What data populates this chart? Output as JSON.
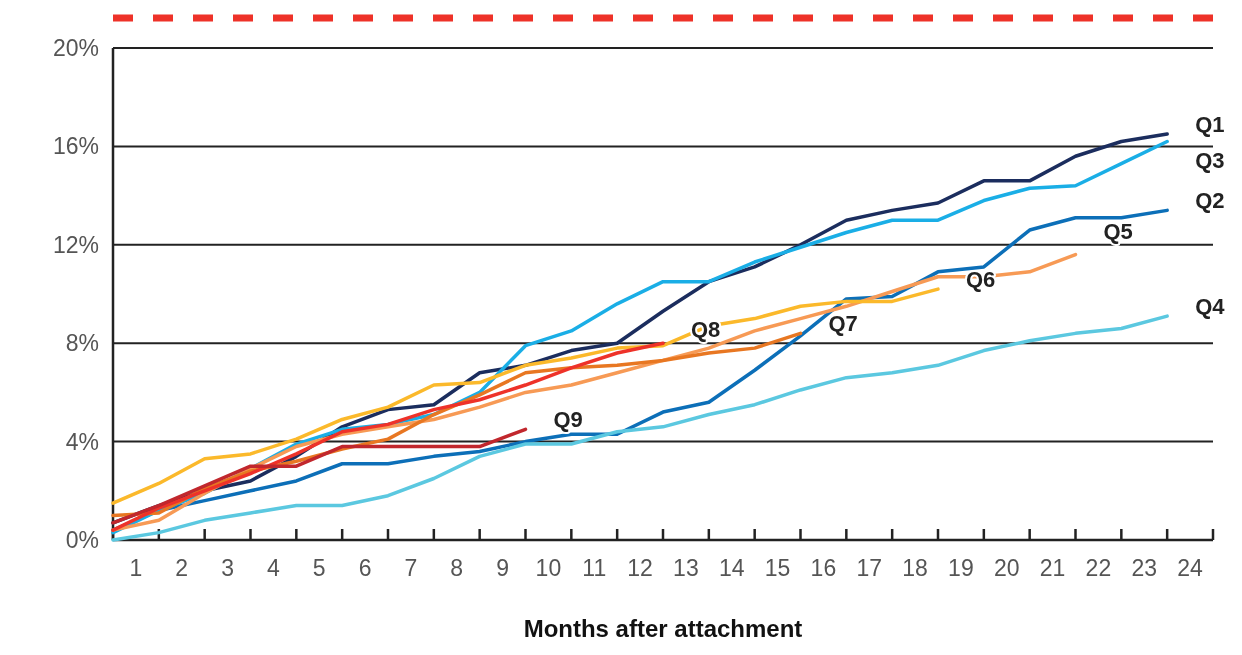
{
  "chart_data": {
    "type": "line",
    "xlabel": "Months after attachment",
    "x": [
      0,
      1,
      2,
      3,
      4,
      5,
      6,
      7,
      8,
      9,
      10,
      11,
      12,
      13,
      14,
      15,
      16,
      17,
      18,
      19,
      20,
      21,
      22,
      23
    ],
    "xlim": [
      0,
      24
    ],
    "xticks": [
      {
        "value": 0,
        "label": null
      },
      {
        "value": 0.5,
        "label": "1"
      },
      {
        "value": 1,
        "label": null
      },
      {
        "value": 1.5,
        "label": "2"
      },
      {
        "value": 2,
        "label": null
      },
      {
        "value": 2.5,
        "label": "3"
      },
      {
        "value": 3,
        "label": null
      },
      {
        "value": 3.5,
        "label": "4"
      },
      {
        "value": 4,
        "label": null
      },
      {
        "value": 4.5,
        "label": "5"
      },
      {
        "value": 5,
        "label": null
      },
      {
        "value": 5.5,
        "label": "6"
      },
      {
        "value": 6,
        "label": null
      },
      {
        "value": 6.5,
        "label": "7"
      },
      {
        "value": 7,
        "label": null
      },
      {
        "value": 7.5,
        "label": "8"
      },
      {
        "value": 8,
        "label": null
      },
      {
        "value": 8.5,
        "label": "9"
      },
      {
        "value": 9,
        "label": null
      },
      {
        "value": 9.5,
        "label": "10"
      },
      {
        "value": 10,
        "label": null
      },
      {
        "value": 10.5,
        "label": "11"
      },
      {
        "value": 11,
        "label": null
      },
      {
        "value": 11.5,
        "label": "12"
      },
      {
        "value": 12,
        "label": null
      },
      {
        "value": 12.5,
        "label": "13"
      },
      {
        "value": 13,
        "label": null
      },
      {
        "value": 13.5,
        "label": "14"
      },
      {
        "value": 14,
        "label": null
      },
      {
        "value": 14.5,
        "label": "15"
      },
      {
        "value": 15,
        "label": null
      },
      {
        "value": 15.5,
        "label": "16"
      },
      {
        "value": 16,
        "label": null
      },
      {
        "value": 16.5,
        "label": "17"
      },
      {
        "value": 17,
        "label": null
      },
      {
        "value": 17.5,
        "label": "18"
      },
      {
        "value": 18,
        "label": null
      },
      {
        "value": 18.5,
        "label": "19"
      },
      {
        "value": 19,
        "label": null
      },
      {
        "value": 19.5,
        "label": "20"
      },
      {
        "value": 20,
        "label": null
      },
      {
        "value": 20.5,
        "label": "21"
      },
      {
        "value": 21,
        "label": null
      },
      {
        "value": 21.5,
        "label": "22"
      },
      {
        "value": 22,
        "label": null
      },
      {
        "value": 22.5,
        "label": "23"
      },
      {
        "value": 23,
        "label": null
      },
      {
        "value": 23.5,
        "label": "24"
      },
      {
        "value": 24,
        "label": null
      }
    ],
    "ylim": [
      0,
      20
    ],
    "yticks": [
      {
        "value": 0,
        "label": "0%"
      },
      {
        "value": 4,
        "label": "4%"
      },
      {
        "value": 8,
        "label": "8%"
      },
      {
        "value": 12,
        "label": "12%"
      },
      {
        "value": 16,
        "label": "16%"
      },
      {
        "value": 20,
        "label": "20%"
      }
    ],
    "grid": "y",
    "marker": "none",
    "line_style": "solid",
    "series": [
      {
        "name": "Q1",
        "color": "#1b2d5e",
        "values": [
          0.7,
          1.4,
          2.0,
          2.4,
          3.4,
          4.6,
          5.3,
          5.5,
          6.8,
          7.1,
          7.7,
          8.0,
          9.3,
          10.5,
          11.1,
          12.0,
          13.0,
          13.4,
          13.7,
          14.6,
          14.6,
          15.6,
          16.2,
          16.5
        ]
      },
      {
        "name": "Q2",
        "color": "#0c6fb8",
        "values": [
          0.4,
          1.2,
          1.6,
          2.0,
          2.4,
          3.1,
          3.1,
          3.4,
          3.6,
          4.0,
          4.3,
          4.3,
          5.2,
          5.6,
          6.9,
          8.3,
          9.8,
          9.9,
          10.9,
          11.1,
          12.6,
          13.1,
          13.1,
          13.4
        ]
      },
      {
        "name": "Q3",
        "color": "#1aaee6",
        "values": [
          0.3,
          1.2,
          1.9,
          2.9,
          3.9,
          4.5,
          4.7,
          5.1,
          6.0,
          7.9,
          8.5,
          9.6,
          10.5,
          10.5,
          11.3,
          11.9,
          12.5,
          13.0,
          13.0,
          13.8,
          14.3,
          14.4,
          15.3,
          16.2
        ]
      },
      {
        "name": "Q4",
        "color": "#5bc8e0",
        "values": [
          0,
          0.3,
          0.8,
          1.1,
          1.4,
          1.4,
          1.8,
          2.5,
          3.4,
          3.9,
          3.9,
          4.4,
          4.6,
          5.1,
          5.5,
          6.1,
          6.6,
          6.8,
          7.1,
          7.7,
          8.1,
          8.4,
          8.6,
          9.1
        ]
      },
      {
        "name": "Q5",
        "color": "#f79a55",
        "values": [
          0.4,
          0.8,
          1.9,
          2.9,
          3.8,
          4.3,
          4.6,
          4.9,
          5.4,
          6.0,
          6.3,
          6.8,
          7.3,
          7.8,
          8.5,
          9.0,
          9.5,
          10.1,
          10.7,
          10.7,
          10.9,
          11.6,
          null,
          null
        ]
      },
      {
        "name": "Q6",
        "color": "#fbb92b",
        "values": [
          1.5,
          2.3,
          3.3,
          3.5,
          4.1,
          4.9,
          5.4,
          6.3,
          6.4,
          7.1,
          7.4,
          7.8,
          7.9,
          8.7,
          9.0,
          9.5,
          9.7,
          9.7,
          10.2,
          null,
          null,
          null,
          null,
          null
        ]
      },
      {
        "name": "Q7",
        "color": "#e87722",
        "values": [
          1.0,
          1.1,
          2.1,
          2.8,
          3.2,
          3.7,
          4.1,
          5.1,
          5.9,
          6.8,
          7.0,
          7.1,
          7.3,
          7.6,
          7.8,
          8.4,
          null,
          null,
          null,
          null,
          null,
          null,
          null,
          null
        ]
      },
      {
        "name": "Q8",
        "color": "#ee3229",
        "values": [
          0.4,
          1.3,
          2.0,
          2.7,
          3.5,
          4.4,
          4.7,
          5.3,
          5.7,
          6.3,
          7.0,
          7.6,
          8.0,
          null,
          null,
          null,
          null,
          null,
          null,
          null,
          null,
          null,
          null,
          null
        ]
      },
      {
        "name": "Q9",
        "color": "#c1272d",
        "values": [
          0.7,
          1.4,
          2.2,
          3.0,
          3.0,
          3.8,
          3.8,
          3.8,
          3.8,
          4.5,
          null,
          null,
          null,
          null,
          null,
          null,
          null,
          null,
          null,
          null,
          null,
          null,
          null,
          null
        ]
      }
    ]
  }
}
